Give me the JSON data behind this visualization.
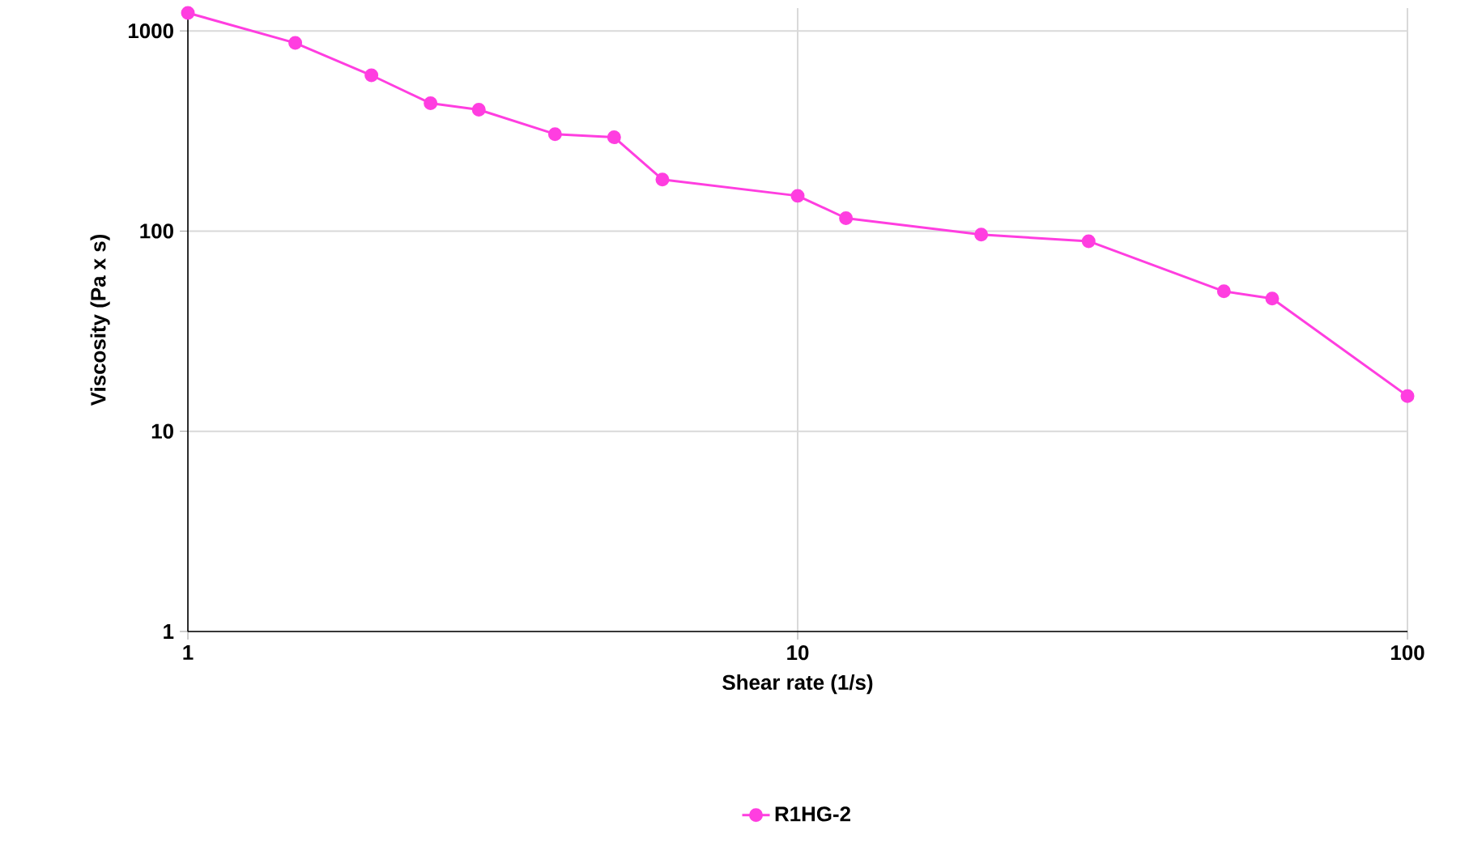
{
  "chart_data": {
    "type": "line",
    "xlabel": "Shear rate (1/s)",
    "ylabel": "Viscosity (Pa x s)",
    "x": [
      1,
      1.5,
      2,
      2.5,
      3,
      4,
      5,
      6,
      10,
      12,
      20,
      30,
      50,
      60,
      100
    ],
    "series": [
      {
        "name": "R1HG-2",
        "color": "#ff3ee0",
        "values": [
          1230,
          870,
          600,
          435,
          404,
          305,
          294,
          181,
          150,
          116,
          96,
          89,
          50,
          46,
          15
        ]
      }
    ],
    "log": "xy",
    "xlim": [
      1,
      100
    ],
    "ylim": [
      1,
      1300
    ],
    "xticks": [
      1,
      10,
      100
    ],
    "yticks": [
      1,
      10,
      100,
      1000
    ],
    "grid": true,
    "legend": "bottom",
    "marker": "circle",
    "line_style": "solid"
  }
}
